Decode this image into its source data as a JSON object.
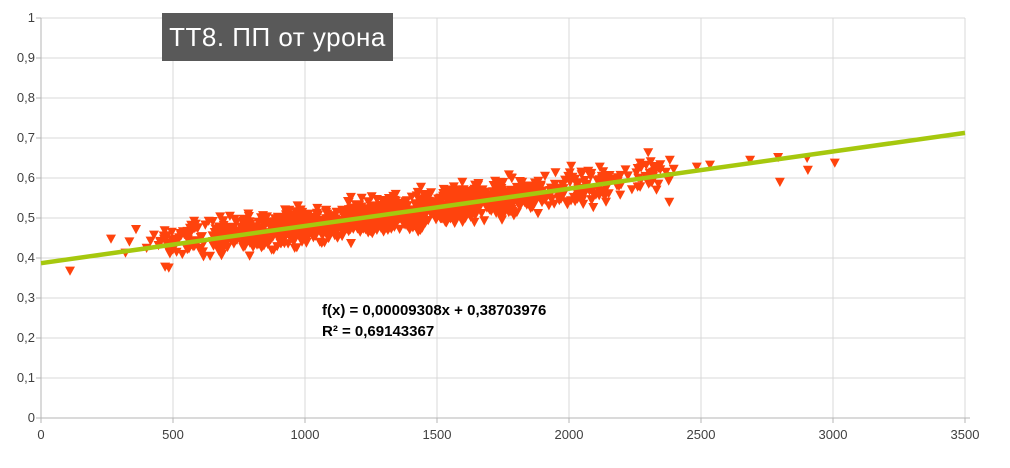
{
  "chart": {
    "title": "ТТ8. ПП от урона"
  },
  "chart_data": {
    "type": "scatter",
    "title": "ТТ8. ПП от урона",
    "xlabel": "",
    "ylabel": "",
    "xlim": [
      0,
      3500
    ],
    "ylim": [
      0,
      1
    ],
    "grid": true,
    "legend": "none",
    "x_ticks": [
      0,
      500,
      1000,
      1500,
      2000,
      2500,
      3000,
      3500
    ],
    "x_tick_labels": [
      "0",
      "500",
      "1000",
      "1500",
      "2000",
      "2500",
      "3000",
      "3500"
    ],
    "y_ticks": [
      0,
      0.1,
      0.2,
      0.3,
      0.4,
      0.5,
      0.6,
      0.7,
      0.8,
      0.9,
      1
    ],
    "y_tick_labels": [
      "0",
      "0,1",
      "0,2",
      "0,3",
      "0,4",
      "0,5",
      "0,6",
      "0,7",
      "0,8",
      "0,9",
      "1"
    ],
    "marker": {
      "shape": "triangle-down",
      "size": 10
    },
    "colors": {
      "marker": "#ff430d",
      "trendline": "#a6c80e",
      "grid": "#d9d9d9",
      "axis": "#b5b5b5",
      "tick_label": "#404040",
      "title_bg": "#595959",
      "title_text": "#ffffff",
      "equation_text": "#000000"
    },
    "trendline": {
      "slope": 9.308e-05,
      "intercept": 0.38703976,
      "r_squared": 0.69143367,
      "x_start": 0,
      "x_end": 3500,
      "width": 4.5,
      "equation_label": "f(x) = 0,00009308x + 0,38703976",
      "r2_label": "R² = 0,69143367"
    },
    "scatter": {
      "points": [
        [
          110,
          0.368
        ],
        [
          265,
          0.448
        ],
        [
          320,
          0.413
        ],
        [
          335,
          0.441
        ],
        [
          360,
          0.472
        ],
        [
          400,
          0.425
        ],
        [
          415,
          0.443
        ],
        [
          428,
          0.458
        ],
        [
          445,
          0.432
        ],
        [
          470,
          0.378
        ],
        [
          2269,
          0.638
        ],
        [
          2300,
          0.664
        ],
        [
          2318,
          0.615
        ],
        [
          2380,
          0.54
        ],
        [
          2382,
          0.645
        ],
        [
          2484,
          0.628
        ],
        [
          2534,
          0.633
        ],
        [
          2686,
          0.645
        ],
        [
          2792,
          0.652
        ],
        [
          2799,
          0.59
        ],
        [
          2902,
          0.65
        ],
        [
          2905,
          0.62
        ],
        [
          3007,
          0.638
        ]
      ],
      "generated": {
        "description": "dense cloud of ~1300 points scattered around the trendline y = 0.00009308x + 0.38703976",
        "seed": 7,
        "noise_amp": 0.065,
        "segments": [
          {
            "x_range": [
              450,
              650
            ],
            "count": 60
          },
          {
            "x_range": [
              650,
              900
            ],
            "count": 165
          },
          {
            "x_range": [
              900,
              1150
            ],
            "count": 240
          },
          {
            "x_range": [
              1150,
              1400
            ],
            "count": 285
          },
          {
            "x_range": [
              1400,
              1650
            ],
            "count": 255
          },
          {
            "x_range": [
              1650,
              1900
            ],
            "count": 180
          },
          {
            "x_range": [
              1900,
              2150
            ],
            "count": 100
          },
          {
            "x_range": [
              2150,
              2400
            ],
            "count": 45
          }
        ]
      }
    }
  }
}
